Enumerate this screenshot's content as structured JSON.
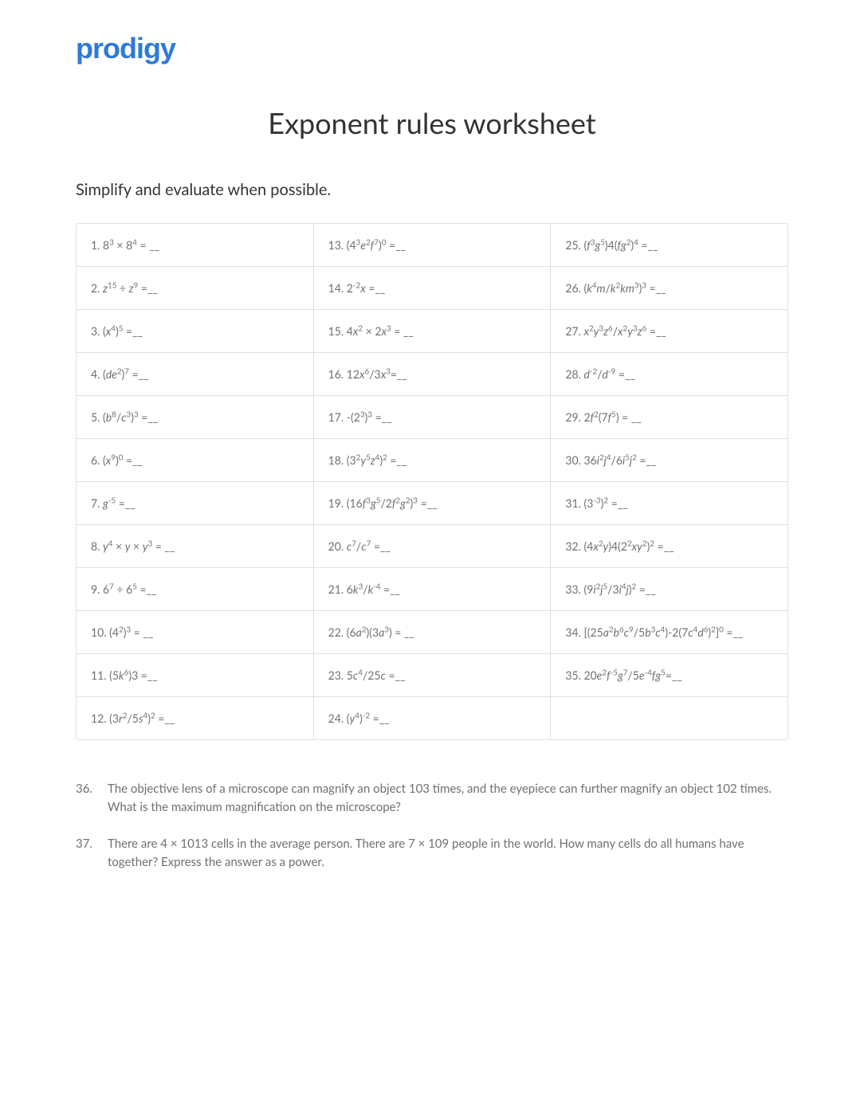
{
  "logo_text": "prodigy",
  "title": "Exponent rules worksheet",
  "instruction": "Simplify and evaluate when possible.",
  "brand_color": "#307ad5",
  "text_color": "#333333",
  "muted_color": "#707070",
  "border_color": "#e0e0e0",
  "problems": {
    "p1": "1. 8<sup>3</sup> × 8<sup>4</sup> = __",
    "p2": "2. <span class='it'>z</span><sup>15</sup> ÷ <span class='it'>z</span><sup>9</sup> =__",
    "p3": "3. (<span class='it'>x</span><sup>4</sup>)<sup>5</sup> =__",
    "p4": "4. (<span class='it'>de</span><sup>2</sup>)<sup>7</sup> =__",
    "p5": "5. (<span class='it'>b</span><sup>8</sup>/<span class='it'>c</span><sup>3</sup>)<sup>3</sup> =__",
    "p6": "6. (<span class='it'>x</span><sup>9</sup>)<sup>0</sup> =__",
    "p7": "7. <span class='it'>g</span><sup>-5</sup> =__",
    "p8": "8. <span class='it'>y</span><sup>4</sup> × <span class='it'>y</span> × <span class='it'>y</span><sup>3</sup> = __",
    "p9": "9. 6<sup>7</sup> ÷ 6<sup>5</sup> =__",
    "p10": "10. (4<sup>2</sup>)<sup>3</sup> = __",
    "p11": "11. (5<span class='it'>k</span><sup>6</sup>)3 =__",
    "p12": "12. (3<span class='it'>r</span><sup>2</sup>/5<span class='it'>s</span><sup>4</sup>)<sup>2</sup> =__",
    "p13": "13. (4<sup>3</sup><span class='it'>e</span><sup>2</sup><span class='it'>f</span><sup>7</sup>)<sup>0</sup> =__",
    "p14": "14. 2<sup>-2</sup><span class='it'>x</span> =__",
    "p15": "15. 4<span class='it'>x</span><sup>2</sup> × 2<span class='it'>x</span><sup>3</sup> = __",
    "p16": "16. 12<span class='it'>x</span><sup>6</sup>/3<span class='it'>x</span><sup>3</sup>=__",
    "p17": "17. -(2<sup>3</sup>)<sup>3</sup> =__",
    "p18": "18. (3<sup>2</sup><span class='it'>y</span><sup>5</sup><span class='it'>z</span><sup>4</sup>)<sup>2</sup> =__",
    "p19": "19. (16<span class='it'>f</span><sup>3</sup><span class='it'>g</span><sup>5</sup>/2<span class='it'>f</span><sup>2</sup><span class='it'>g</span><sup>2</sup>)<sup>3</sup> =__",
    "p20": "20. <span class='it'>c</span><sup>7</sup>/<span class='it'>c</span><sup>7</sup> =__",
    "p21": "21. 6<span class='it'>k</span><sup>3</sup>/<span class='it'>k</span><sup>-4</sup> =__",
    "p22": "22. (6<span class='it'>a</span><sup>2</sup>)(3<span class='it'>a</span><sup>3</sup>) = __",
    "p23": "23. 5<span class='it'>c</span><sup>4</sup>/25<span class='it'>c</span> =__",
    "p24": "24. (<span class='it'>y</span><sup>4</sup>)<sup>-2</sup> =__",
    "p25": "25. (<span class='it'>f</span><sup>3</sup><span class='it'>g</span><sup>5</sup>)4(<span class='it'>fg</span><sup>2</sup>)<sup>4</sup> =__",
    "p26": "26. (<span class='it'>k</span><sup>4</sup><span class='it'>m</span>/<span class='it'>k</span><sup>2</sup><span class='it'>km</span><sup>3</sup>)<sup>3</sup> =__",
    "p27": "27. <span class='it'>x</span><sup>2</sup><span class='it'>y</span><sup>3</sup><span class='it'>z</span><sup>6</sup>/<span class='it'>x</span><sup>2</sup><span class='it'>y</span><sup>3</sup><span class='it'>z</span><sup>6</sup> =__",
    "p28": "28. <span class='it'>d</span><sup>-2</sup>/<span class='it'>d</span><sup>-9</sup> =__",
    "p29": "29. 2<span class='it'>f</span><sup>2</sup>(7<span class='it'>f</span><sup>5</sup>) = __",
    "p30": "30. 36<span class='it'>i</span><sup>2</sup><span class='it'>j</span><sup>4</sup>/6<span class='it'>i</span><sup>5</sup><span class='it'>j</span><sup>2</sup> =__",
    "p31": "31. (3<sup>-3</sup>)<sup>2</sup> =__",
    "p32": "32. (4<span class='it'>x</span><sup>2</sup><span class='it'>y</span>)4(2<sup>2</sup><span class='it'>xy</span><sup>2</sup>)<sup>2</sup> =__",
    "p33": "33. (9<span class='it'>i</span><sup>2</sup><span class='it'>j</span><sup>5</sup>/3<span class='it'>i</span><sup>4</sup><span class='it'>j</span>)<sup>2</sup> =__",
    "p34": "34. [(25<span class='it'>a</span><sup>2</sup><span class='it'>b</span><sup>6</sup><span class='it'>c</span><sup>9</sup>/5<span class='it'>b</span><sup>3</sup><span class='it'>c</span><sup>4</sup>)-2(7<span class='it'>c</span><sup>4</sup><span class='it'>d</span><sup>6</sup>)<sup>2</sup>]<sup>0</sup> =__",
    "p35": "35. 20<span class='it'>e</span><sup>2</sup><span class='it'>f</span><sup>-5</sup><span class='it'>g</span><sup>7</sup>/5<span class='it'>e</span><sup>-4</sup><span class='it'>fg</span><sup>5</sup>=__"
  },
  "word_problems": {
    "w36_num": "36.",
    "w36_text": "The objective lens of a microscope can magnify an object  103 times, and the eyepiece can further magnify an object 102 times. What is the maximum magnification on the microscope?",
    "w37_num": "37.",
    "w37_text": "There are 4 × 1013 cells in the average person. There are 7 × 109 people in the world. How many cells do all humans have together? Express the answer as a power."
  }
}
